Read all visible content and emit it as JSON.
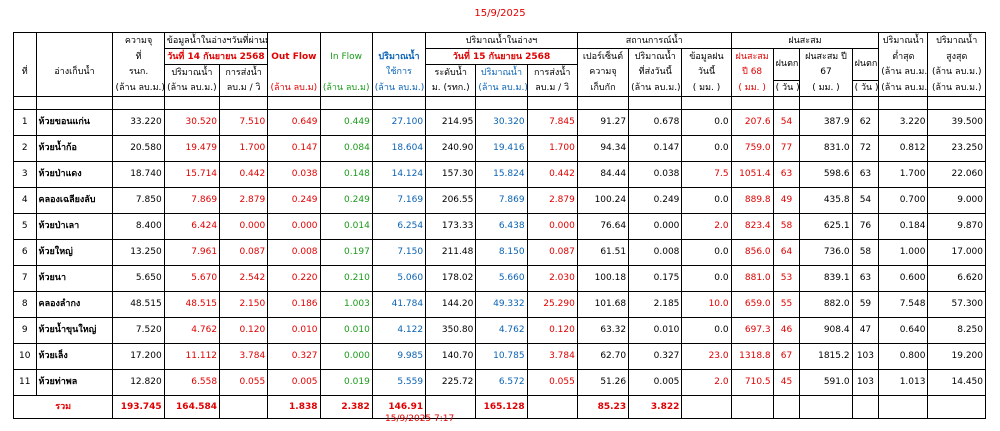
{
  "report_date": "15/9/2025",
  "report_timestamp": "15/9/2025 7:17",
  "headers": {
    "no": "ที่",
    "reservoir": "อ่างเก็บน้ำ",
    "capacity": [
      "ความจุ",
      "ที่",
      "รนก.",
      "(ล้าน ลบ.ม.)"
    ],
    "yesterday_group": "ข้อมูลน้ำในอ่างฯวันที่ผ่านมา",
    "yesterday_date": "วันที่ 14 กันยายน 2568",
    "yesterday_volume": [
      "ปริมาณน้ำ",
      "(ล้าน ลบ.ม.)"
    ],
    "yesterday_release": [
      "การส่งน้ำ",
      "ลบ.ม / วิ"
    ],
    "out_flow": [
      "Out Flow",
      "(ล้าน ลบ.ม)"
    ],
    "in_flow": [
      "In Flow",
      "(ล้าน ลบ.ม)"
    ],
    "usable": [
      "ปริมาณน้ำ",
      "ใช้การ",
      "(ล้าน ลบ.ม.)"
    ],
    "today_group": "ปริมาณน้ำในอ่างฯ",
    "today_date": "วันที่ 15 กันยายน 2568",
    "level": [
      "ระดับน้ำ",
      "ม. (รทก.)"
    ],
    "today_volume": [
      "ปริมาณน้ำ",
      "(ล้าน ลบ.ม.)"
    ],
    "today_release": [
      "การส่งน้ำ",
      "ลบ.ม / วิ"
    ],
    "status_group": "สถานการณ์น้ำ",
    "percent": [
      "เปอร์เซ็นต์",
      "ความจุ",
      "เก็บกัก"
    ],
    "released_today": [
      "ปริมาณน้ำ",
      "ที่ส่งวันนี้",
      "(ล้าน ลบ.ม.)"
    ],
    "rain_today": [
      "ข้อมูลฝน",
      "วันนี้",
      "( มม. )"
    ],
    "accum_group": "ฝนสะสม",
    "accum68": [
      "ฝนสะสม",
      "ปี 68",
      "( มม. )"
    ],
    "rain_days68": [
      "ฝนตก",
      "( วัน )"
    ],
    "accum67": [
      "ฝนสะสม ปี",
      "67",
      "( มม. )"
    ],
    "rain_days67": [
      "ฝนตก",
      "( วัน )"
    ],
    "min": [
      "ปริมาณน้ำ",
      "ต่ำสุด",
      "(ล้าน ลบ.ม.)"
    ],
    "max": [
      "ปริมาณน้ำ",
      "สูงสุด",
      "(ล้าน ลบ.ม.)"
    ]
  },
  "rows": [
    {
      "no": "1",
      "name": "ห้วยขอนแก่น",
      "cap": "33.220",
      "yvol": "30.520",
      "yrel": "7.510",
      "out": "0.649",
      "in": "0.449",
      "use": "27.100",
      "lvl": "214.95",
      "tvol": "30.320",
      "trel": "7.845",
      "pct": "91.27",
      "sent": "0.678",
      "rain": "0.0",
      "a68": "207.6",
      "d68": "54",
      "a67": "387.9",
      "d67": "62",
      "min": "3.220",
      "max": "39.500"
    },
    {
      "no": "2",
      "name": "ห้วยน้ำก้อ",
      "cap": "20.580",
      "yvol": "19.479",
      "yrel": "1.700",
      "out": "0.147",
      "in": "0.084",
      "use": "18.604",
      "lvl": "240.90",
      "tvol": "19.416",
      "trel": "1.700",
      "pct": "94.34",
      "sent": "0.147",
      "rain": "0.0",
      "a68": "759.0",
      "d68": "77",
      "a67": "831.0",
      "d67": "72",
      "min": "0.812",
      "max": "23.250"
    },
    {
      "no": "3",
      "name": "ห้วยป่าแดง",
      "cap": "18.740",
      "yvol": "15.714",
      "yrel": "0.442",
      "out": "0.038",
      "in": "0.148",
      "use": "14.124",
      "lvl": "157.30",
      "tvol": "15.824",
      "trel": "0.442",
      "pct": "84.44",
      "sent": "0.038",
      "rain": "7.5",
      "a68": "1051.4",
      "d68": "63",
      "a67": "598.6",
      "d67": "63",
      "min": "1.700",
      "max": "22.060"
    },
    {
      "no": "4",
      "name": "คลองเฉลียงลับ",
      "cap": "7.850",
      "yvol": "7.869",
      "yrel": "2.879",
      "out": "0.249",
      "in": "0.249",
      "use": "7.169",
      "lvl": "206.55",
      "tvol": "7.869",
      "trel": "2.879",
      "pct": "100.24",
      "sent": "0.249",
      "rain": "0.0",
      "a68": "889.8",
      "d68": "49",
      "a67": "435.8",
      "d67": "54",
      "min": "0.700",
      "max": "9.000"
    },
    {
      "no": "5",
      "name": "ห้วยป่าเลา",
      "cap": "8.400",
      "yvol": "6.424",
      "yrel": "0.000",
      "out": "0.000",
      "in": "0.014",
      "use": "6.254",
      "lvl": "173.33",
      "tvol": "6.438",
      "trel": "0.000",
      "pct": "76.64",
      "sent": "0.000",
      "rain": "2.0",
      "a68": "823.4",
      "d68": "58",
      "a67": "625.1",
      "d67": "76",
      "min": "0.184",
      "max": "9.870"
    },
    {
      "no": "6",
      "name": "ห้วยใหญ่",
      "cap": "13.250",
      "yvol": "7.961",
      "yrel": "0.087",
      "out": "0.008",
      "in": "0.197",
      "use": "7.150",
      "lvl": "211.48",
      "tvol": "8.150",
      "trel": "0.087",
      "pct": "61.51",
      "sent": "0.008",
      "rain": "0.0",
      "a68": "856.0",
      "d68": "64",
      "a67": "736.0",
      "d67": "58",
      "min": "1.000",
      "max": "17.000"
    },
    {
      "no": "7",
      "name": "ห้วยนา",
      "cap": "5.650",
      "yvol": "5.670",
      "yrel": "2.542",
      "out": "0.220",
      "in": "0.210",
      "use": "5.060",
      "lvl": "178.02",
      "tvol": "5.660",
      "trel": "2.030",
      "pct": "100.18",
      "sent": "0.175",
      "rain": "0.0",
      "a68": "881.0",
      "d68": "53",
      "a67": "839.1",
      "d67": "63",
      "min": "0.600",
      "max": "6.620"
    },
    {
      "no": "8",
      "name": "คลองลำกง",
      "cap": "48.515",
      "yvol": "48.515",
      "yrel": "2.150",
      "out": "0.186",
      "in": "1.003",
      "use": "41.784",
      "lvl": "144.20",
      "tvol": "49.332",
      "trel": "25.290",
      "pct": "101.68",
      "sent": "2.185",
      "rain": "10.0",
      "a68": "659.0",
      "d68": "55",
      "a67": "882.0",
      "d67": "59",
      "min": "7.548",
      "max": "57.300"
    },
    {
      "no": "9",
      "name": "ห้วยน้ำขุนใหญ่",
      "cap": "7.520",
      "yvol": "4.762",
      "yrel": "0.120",
      "out": "0.010",
      "in": "0.010",
      "use": "4.122",
      "lvl": "350.80",
      "tvol": "4.762",
      "trel": "0.120",
      "pct": "63.32",
      "sent": "0.010",
      "rain": "0.0",
      "a68": "697.3",
      "d68": "46",
      "a67": "908.4",
      "d67": "47",
      "min": "0.640",
      "max": "8.250"
    },
    {
      "no": "10",
      "name": "ห้วยเล็ง",
      "cap": "17.200",
      "yvol": "11.112",
      "yrel": "3.784",
      "out": "0.327",
      "in": "0.000",
      "use": "9.985",
      "lvl": "140.70",
      "tvol": "10.785",
      "trel": "3.784",
      "pct": "62.70",
      "sent": "0.327",
      "rain": "23.0",
      "a68": "1318.8",
      "d68": "67",
      "a67": "1815.2",
      "d67": "103",
      "min": "0.800",
      "max": "19.200"
    },
    {
      "no": "11",
      "name": "ห้วยท่าพล",
      "cap": "12.820",
      "yvol": "6.558",
      "yrel": "0.055",
      "out": "0.005",
      "in": "0.019",
      "use": "5.559",
      "lvl": "225.72",
      "tvol": "6.572",
      "trel": "0.055",
      "pct": "51.26",
      "sent": "0.005",
      "rain": "2.0",
      "a68": "710.5",
      "d68": "45",
      "a67": "591.0",
      "d67": "103",
      "min": "1.013",
      "max": "14.450"
    }
  ],
  "total": {
    "label": "รวม",
    "cap": "193.745",
    "yvol": "164.584",
    "out": "1.838",
    "in": "2.382",
    "use": "146.91",
    "tvol": "165.128",
    "pct": "85.23",
    "sent": "3.822"
  },
  "colors": {
    "red": "#e00000",
    "green": "#1a9a1a",
    "blue": "#0b63b5"
  }
}
